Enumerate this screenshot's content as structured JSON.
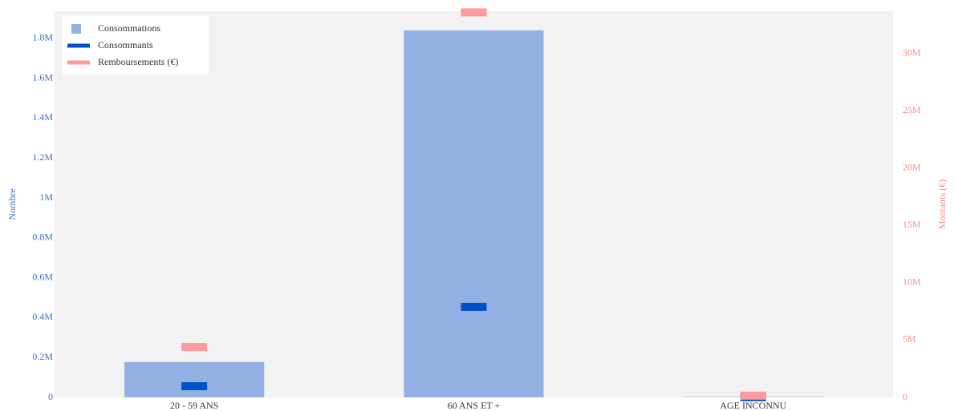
{
  "chart_data": {
    "type": "bar",
    "categories": [
      "20 - 59 ANS",
      "60 ANS ET +",
      "AGE INCONNU"
    ],
    "ylabel": "Nombre",
    "y2label": "Montants (€)",
    "ylim": [
      0,
      1936000
    ],
    "yticks": [
      0,
      {
        "value": 200000,
        "label": "0.2M"
      },
      {
        "value": 400000,
        "label": "0.4M"
      },
      {
        "value": 600000,
        "label": "0.6M"
      },
      {
        "value": 800000,
        "label": "0.8M"
      },
      {
        "value": 1000000,
        "label": "1M"
      },
      {
        "value": 1200000,
        "label": "1.2M"
      },
      {
        "value": 1400000,
        "label": "1.4M"
      },
      {
        "value": 1600000,
        "label": "1.6M"
      },
      {
        "value": 1800000,
        "label": "1.8M"
      }
    ],
    "y2lim": [
      0,
      33700000
    ],
    "y2ticks": [
      0,
      {
        "value": 5000000,
        "label": "5M"
      },
      {
        "value": 10000000,
        "label": "10M"
      },
      {
        "value": 15000000,
        "label": "15M"
      },
      {
        "value": 20000000,
        "label": "20M"
      },
      {
        "value": 25000000,
        "label": "25M"
      },
      {
        "value": 30000000,
        "label": "30M"
      }
    ],
    "y_color": "#3b6fc8",
    "y2_color": "#ff8a8a",
    "legend": "top-left",
    "series": [
      {
        "name": "Consommations",
        "type": "bar",
        "color": "#93b0e3",
        "axis": "y",
        "values": [
          177000,
          1840000,
          2000
        ]
      },
      {
        "name": "Consommants",
        "type": "marker",
        "color": "#0050c8",
        "axis": "y",
        "values": [
          56000,
          454000,
          1000
        ]
      },
      {
        "name": "Remboursements (€)",
        "type": "marker",
        "color": "#ff9a9a",
        "axis": "y2",
        "values": [
          4400000,
          33600000,
          150000
        ]
      }
    ]
  }
}
